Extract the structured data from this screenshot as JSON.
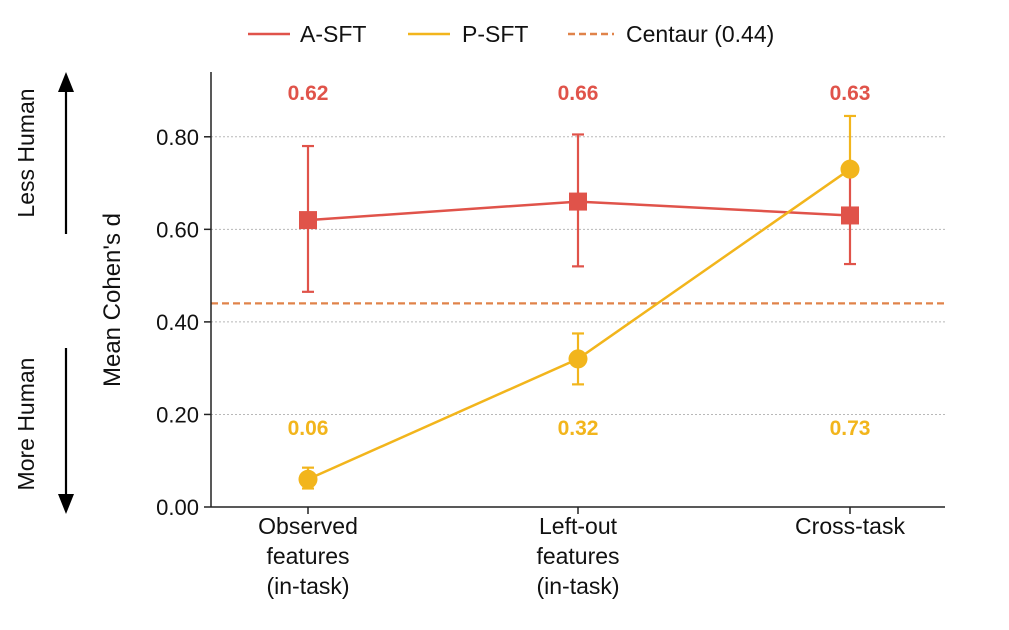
{
  "chart_data": {
    "type": "line",
    "title": "",
    "xlabel": "",
    "ylabel": "Mean Cohen's d",
    "ylim": [
      0,
      0.94
    ],
    "yticks": [
      "0.00",
      "0.20",
      "0.40",
      "0.60",
      "0.80"
    ],
    "ytick_values": [
      0,
      0.2,
      0.4,
      0.6,
      0.8
    ],
    "grid": "horizontal dotted",
    "legend_position": "top",
    "categories": [
      [
        "Observed",
        "features",
        "(in-task)"
      ],
      [
        "Left-out",
        "features",
        "(in-task)"
      ],
      [
        "Cross-task"
      ]
    ],
    "series": [
      {
        "name": "A-SFT",
        "color": "#e0534a",
        "marker": "square",
        "values": [
          0.62,
          0.66,
          0.63
        ],
        "err_low": [
          0.465,
          0.52,
          0.525
        ],
        "err_high": [
          0.78,
          0.805,
          0.725
        ],
        "labels": [
          "0.62",
          "0.66",
          "0.63"
        ]
      },
      {
        "name": "P-SFT",
        "color": "#f2b51c",
        "marker": "circle",
        "values": [
          0.06,
          0.32,
          0.73
        ],
        "err_low": [
          0.04,
          0.265,
          0.72
        ],
        "err_high": [
          0.085,
          0.375,
          0.845
        ],
        "labels": [
          "0.06",
          "0.32",
          "0.73"
        ]
      }
    ],
    "reference_line": {
      "name": "Centaur (0.44)",
      "value": 0.44,
      "color": "#e0834a",
      "style": "dashed"
    },
    "side_annotations": {
      "up": "Less Human",
      "down": "More Human"
    }
  }
}
